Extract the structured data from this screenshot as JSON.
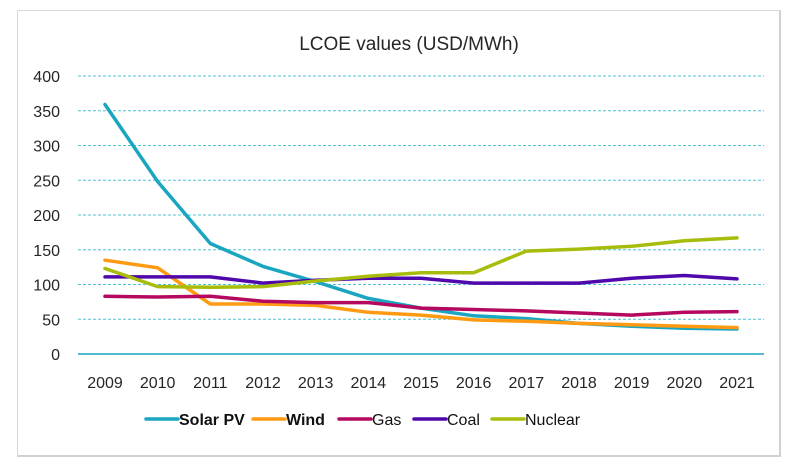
{
  "chart_data": {
    "type": "line",
    "title": "LCOE values (USD/MWh)",
    "xlabel": "",
    "ylabel": "",
    "x": [
      "2009",
      "2010",
      "2011",
      "2012",
      "2013",
      "2014",
      "2015",
      "2016",
      "2017",
      "2018",
      "2019",
      "2020",
      "2021"
    ],
    "ylim": [
      0,
      400
    ],
    "yticks": [
      0,
      50,
      100,
      150,
      200,
      250,
      300,
      350,
      400
    ],
    "grid": true,
    "legend_position": "bottom",
    "series": [
      {
        "name": "Solar PV",
        "color": "#1aa6c0",
        "values": [
          359,
          248,
          159,
          126,
          104,
          80,
          66,
          55,
          51,
          44,
          40,
          37,
          36
        ]
      },
      {
        "name": "Wind",
        "color": "#ff9a12",
        "values": [
          135,
          124,
          72,
          72,
          70,
          60,
          56,
          49,
          47,
          44,
          42,
          40,
          38
        ]
      },
      {
        "name": "Gas",
        "color": "#b5085f",
        "values": [
          83,
          82,
          83,
          76,
          74,
          74,
          66,
          64,
          62,
          59,
          56,
          60,
          61
        ]
      },
      {
        "name": "Coal",
        "color": "#4f08ab",
        "values": [
          111,
          111,
          111,
          102,
          106,
          109,
          109,
          102,
          102,
          102,
          109,
          113,
          108
        ]
      },
      {
        "name": "Nuclear",
        "color": "#a8bc0c",
        "values": [
          123,
          97,
          96,
          97,
          105,
          112,
          117,
          117,
          148,
          151,
          155,
          163,
          167
        ]
      }
    ]
  }
}
